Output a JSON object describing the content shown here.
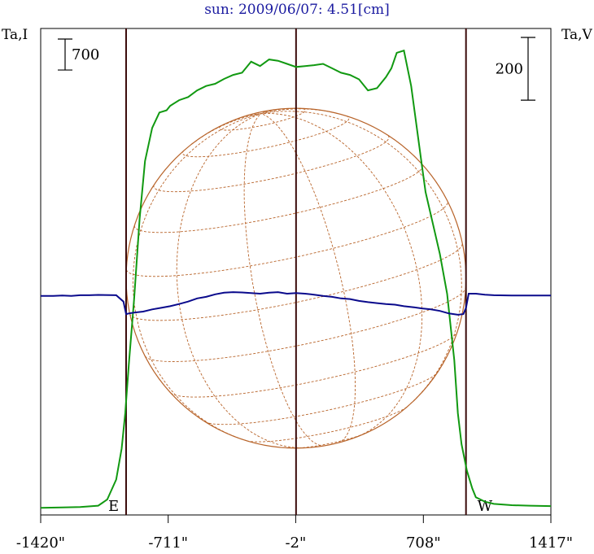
{
  "chart_data": {
    "type": "line",
    "title": "sun: 2009/06/07: 4.51[cm]",
    "ylabel_left": "Ta,I",
    "ylabel_right": "Ta,V",
    "xlim": [
      -1420,
      1417
    ],
    "x_ticks": [
      {
        "v": -1420,
        "label": "-1420\""
      },
      {
        "v": -711,
        "label": "-711\""
      },
      {
        "v": -2,
        "label": "-2\""
      },
      {
        "v": 708,
        "label": "708\""
      },
      {
        "v": 1417,
        "label": "1417\""
      }
    ],
    "limb_lines_x": [
      -945,
      0,
      945
    ],
    "limb_labels": {
      "east": "E",
      "west": "W"
    },
    "scale_bars": {
      "intensity": {
        "value": 700,
        "label": "700"
      },
      "polarization": {
        "value": 200,
        "label": "200"
      }
    },
    "intensity_ylim": [
      -2000,
      9000
    ],
    "polarization_ylim": [
      -700,
      850
    ],
    "series": [
      {
        "key": "I",
        "color": "#119911",
        "x": [
          -1420,
          -1300,
          -1200,
          -1100,
          -1050,
          -1000,
          -970,
          -950,
          -930,
          -900,
          -870,
          -840,
          -800,
          -760,
          -720,
          -700,
          -650,
          -600,
          -550,
          -500,
          -450,
          -400,
          -350,
          -300,
          -250,
          -200,
          -150,
          -100,
          -50,
          0,
          50,
          100,
          150,
          200,
          250,
          300,
          350,
          400,
          450,
          500,
          530,
          560,
          600,
          640,
          680,
          700,
          720,
          760,
          800,
          840,
          880,
          900,
          920,
          950,
          980,
          1000,
          1050,
          1100,
          1200,
          1300,
          1417
        ],
        "y": [
          -1840,
          -1830,
          -1820,
          -1790,
          -1650,
          -1200,
          -500,
          300,
          1400,
          2900,
          4700,
          6000,
          6750,
          7100,
          7150,
          7250,
          7380,
          7450,
          7600,
          7700,
          7750,
          7860,
          7950,
          8000,
          8250,
          8150,
          8300,
          8270,
          8200,
          8130,
          8150,
          8170,
          8200,
          8100,
          8000,
          7950,
          7850,
          7600,
          7650,
          7900,
          8100,
          8450,
          8500,
          7700,
          6500,
          5900,
          5300,
          4600,
          3900,
          3000,
          1500,
          300,
          -400,
          -1000,
          -1400,
          -1600,
          -1700,
          -1750,
          -1780,
          -1790,
          -1800
        ]
      },
      {
        "key": "V",
        "color": "#0a0a8c",
        "x": [
          -1420,
          -1350,
          -1300,
          -1250,
          -1200,
          -1150,
          -1100,
          -1000,
          -960,
          -945,
          -930,
          -900,
          -850,
          -800,
          -750,
          -700,
          -650,
          -600,
          -550,
          -500,
          -450,
          -400,
          -350,
          -300,
          -250,
          -200,
          -150,
          -100,
          -50,
          0,
          50,
          100,
          150,
          200,
          250,
          300,
          350,
          400,
          450,
          500,
          550,
          600,
          650,
          700,
          750,
          800,
          850,
          900,
          930,
          945,
          960,
          1000,
          1050,
          1100,
          1200,
          1300,
          1417
        ],
        "y": [
          -2,
          -2,
          -1,
          -2,
          0,
          0,
          1,
          0,
          -20,
          -60,
          -58,
          -55,
          -52,
          -45,
          -40,
          -35,
          -28,
          -20,
          -10,
          -5,
          3,
          8,
          10,
          9,
          7,
          5,
          8,
          10,
          5,
          7,
          5,
          2,
          -2,
          -5,
          -10,
          -12,
          -18,
          -22,
          -25,
          -28,
          -30,
          -35,
          -38,
          -42,
          -45,
          -50,
          -58,
          -62,
          -60,
          -40,
          5,
          5,
          2,
          0,
          -1,
          -1,
          -1
        ]
      }
    ]
  }
}
